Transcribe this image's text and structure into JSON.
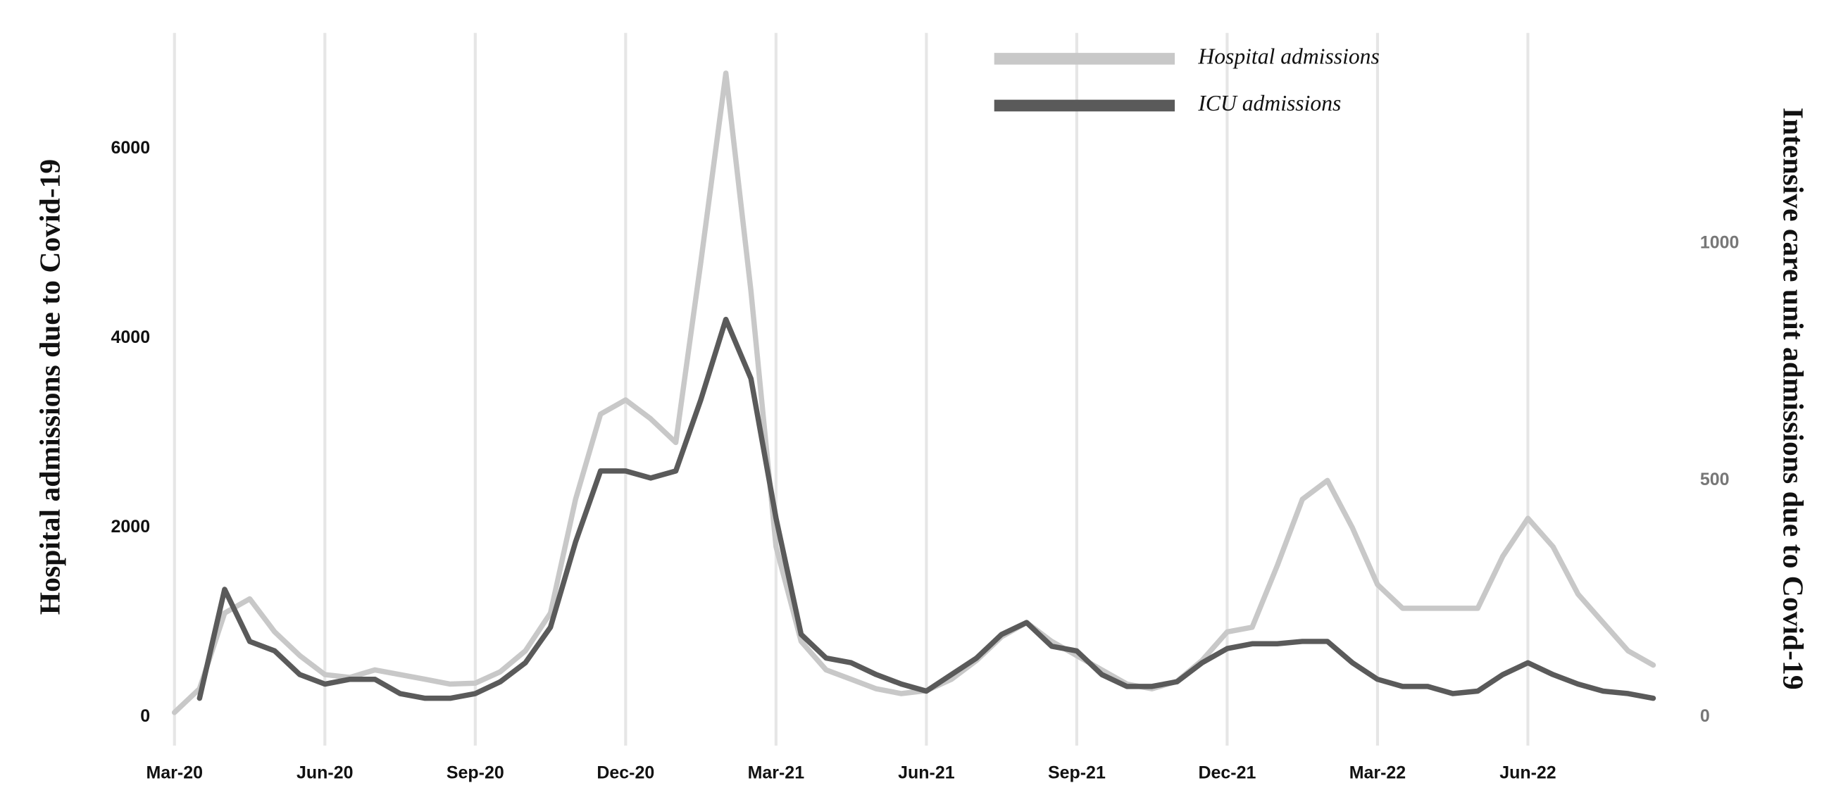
{
  "chart_data": {
    "type": "line",
    "y_label": "Hospital admissions due to Covid-19",
    "y2_label": "Intensive care unit admissions due to Covid-19",
    "x": [
      0,
      0.5,
      1,
      1.5,
      2,
      2.5,
      3,
      3.5,
      4,
      4.5,
      5,
      5.5,
      6,
      6.5,
      7,
      7.5,
      8,
      8.5,
      9,
      9.5,
      10,
      10.5,
      11,
      11.5,
      12,
      12.5,
      13,
      13.5,
      14,
      14.5,
      15,
      15.5,
      16,
      16.5,
      17,
      17.5,
      18,
      18.5,
      19,
      19.5,
      20,
      20.5,
      21,
      21.5,
      22,
      22.5,
      23,
      23.5,
      24,
      24.5,
      25,
      25.5,
      26,
      26.5,
      27,
      27.5,
      28,
      28.5,
      29,
      29.5
    ],
    "xlim": [
      -0.3,
      30.2
    ],
    "xticks": [
      {
        "value": 0,
        "label": "Mar-20"
      },
      {
        "value": 3,
        "label": "Jun-20"
      },
      {
        "value": 6,
        "label": "Sep-20"
      },
      {
        "value": 9,
        "label": "Dec-20"
      },
      {
        "value": 12,
        "label": "Mar-21"
      },
      {
        "value": 15,
        "label": "Jun-21"
      },
      {
        "value": 18,
        "label": "Sep-21"
      },
      {
        "value": 21,
        "label": "Dec-21"
      },
      {
        "value": 24,
        "label": "Mar-22"
      },
      {
        "value": 27,
        "label": "Jun-22"
      }
    ],
    "ylim": [
      -300,
      7200
    ],
    "yticks": [
      0,
      2000,
      4000,
      6000
    ],
    "y2lim": [
      -60,
      1440
    ],
    "y2ticks": [
      0,
      500,
      1000
    ],
    "grid": "x",
    "legend": "top",
    "series": [
      {
        "name": "Hospital admissions",
        "color": "#c8c8c8",
        "values": [
          50,
          300,
          1100,
          1250,
          900,
          650,
          450,
          420,
          500,
          450,
          400,
          350,
          360,
          480,
          700,
          1100,
          2300,
          3200,
          3350,
          3150,
          2900,
          4800,
          6800,
          4500,
          1800,
          800,
          500,
          400,
          300,
          250,
          280,
          400,
          600,
          850,
          1000,
          800,
          650,
          500,
          350,
          300,
          380,
          600,
          900,
          950,
          1600,
          2300,
          2500,
          2000,
          1400,
          1150,
          1150,
          1150,
          1150,
          1700,
          2100,
          1800,
          1300,
          1000,
          700,
          550
        ]
      },
      {
        "name": "ICU admissions",
        "color": "#5a5a5a",
        "axis": "y2",
        "values": [
          null,
          40,
          270,
          160,
          140,
          90,
          70,
          80,
          80,
          50,
          40,
          40,
          50,
          75,
          115,
          190,
          370,
          520,
          520,
          505,
          520,
          670,
          840,
          715,
          420,
          175,
          125,
          115,
          90,
          70,
          55,
          90,
          125,
          175,
          200,
          150,
          140,
          90,
          65,
          65,
          75,
          115,
          145,
          155,
          155,
          160,
          160,
          115,
          80,
          65,
          65,
          50,
          55,
          90,
          115,
          90,
          70,
          55,
          50,
          40
        ]
      }
    ]
  }
}
